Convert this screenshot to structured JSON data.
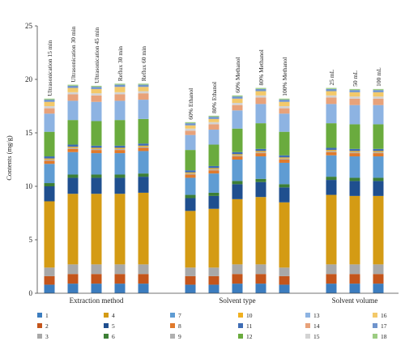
{
  "colors": [
    "#3c7dbf",
    "#c4551b",
    "#a8a8a8",
    "#d49b14",
    "#1f4f8f",
    "#3d7f36",
    "#5f9cd3",
    "#e07a2c",
    "#b0b0b0",
    "#f0b020",
    "#3f6db5",
    "#6aab3e",
    "#8db3e2",
    "#e8a27a",
    "#d3d3d3",
    "#f3c96a",
    "#6f94cc",
    "#9ccc82"
  ],
  "chart_data": {
    "type": "bar",
    "stacked": true,
    "ylabel": "Contents (mg/g)",
    "ylim": [
      0,
      25
    ],
    "yticks": [
      "0",
      "5",
      "10",
      "15",
      "20",
      "25"
    ],
    "groups": [
      {
        "name": "Extraction method",
        "bars": [
          "Ultrasonication 15 min",
          "Ultrasonication 30 min",
          "Ultrasonication 45 min",
          "Reflux 30 min",
          "Reflux 60 min"
        ]
      },
      {
        "name": "Solvent type",
        "bars": [
          "60% Ethanol",
          "80% Ethanol",
          "60% Methanol",
          "80% Methanol",
          "100% Methanol"
        ]
      },
      {
        "name": "Solvent volume",
        "bars": [
          "25 mL",
          "50 mL",
          "100 mL"
        ]
      }
    ],
    "categories": [
      "Ultrasonication 15 min",
      "Ultrasonication 30 min",
      "Ultrasonication 45 min",
      "Reflux 30 min",
      "Reflux 60 min",
      "60% Ethanol",
      "80% Ethanol",
      "60% Methanol",
      "80% Methanol",
      "100% Methanol",
      "25 mL",
      "50 mL",
      "100 mL"
    ],
    "series": [
      {
        "name": "1",
        "values": [
          0.8,
          0.9,
          0.9,
          0.9,
          0.9,
          0.8,
          0.8,
          0.9,
          0.9,
          0.8,
          0.9,
          0.9,
          0.9
        ]
      },
      {
        "name": "2",
        "values": [
          0.8,
          0.9,
          0.9,
          0.9,
          0.9,
          0.8,
          0.8,
          0.9,
          0.9,
          0.8,
          0.9,
          0.9,
          0.9
        ]
      },
      {
        "name": "3",
        "values": [
          0.8,
          0.9,
          0.9,
          0.9,
          0.9,
          0.8,
          0.8,
          0.9,
          0.9,
          0.8,
          0.9,
          0.9,
          0.9
        ]
      },
      {
        "name": "4",
        "values": [
          6.2,
          6.6,
          6.6,
          6.6,
          6.7,
          5.3,
          5.5,
          6.1,
          6.3,
          6.1,
          6.5,
          6.4,
          6.4
        ]
      },
      {
        "name": "5",
        "values": [
          1.4,
          1.5,
          1.5,
          1.5,
          1.5,
          1.2,
          1.2,
          1.4,
          1.4,
          1.4,
          1.4,
          1.4,
          1.4
        ]
      },
      {
        "name": "6",
        "values": [
          0.3,
          0.3,
          0.3,
          0.3,
          0.3,
          0.3,
          0.3,
          0.3,
          0.3,
          0.3,
          0.3,
          0.3,
          0.3
        ]
      },
      {
        "name": "7",
        "values": [
          1.8,
          2.1,
          2.0,
          2.0,
          2.1,
          1.6,
          1.8,
          2.0,
          2.1,
          2.0,
          2.0,
          2.0,
          2.0
        ]
      },
      {
        "name": "8",
        "values": [
          0.3,
          0.3,
          0.3,
          0.3,
          0.3,
          0.3,
          0.3,
          0.3,
          0.3,
          0.3,
          0.3,
          0.3,
          0.3
        ]
      },
      {
        "name": "9",
        "values": [
          0.1,
          0.1,
          0.1,
          0.1,
          0.1,
          0.1,
          0.1,
          0.1,
          0.1,
          0.1,
          0.1,
          0.1,
          0.1
        ]
      },
      {
        "name": "10",
        "values": [
          0.1,
          0.1,
          0.1,
          0.1,
          0.1,
          0.1,
          0.1,
          0.1,
          0.1,
          0.1,
          0.1,
          0.1,
          0.1
        ]
      },
      {
        "name": "11",
        "values": [
          0.2,
          0.2,
          0.2,
          0.2,
          0.2,
          0.2,
          0.2,
          0.2,
          0.2,
          0.2,
          0.2,
          0.2,
          0.2
        ]
      },
      {
        "name": "12",
        "values": [
          2.3,
          2.3,
          2.3,
          2.4,
          2.3,
          1.9,
          2.0,
          2.2,
          2.4,
          2.2,
          2.3,
          2.3,
          2.3
        ]
      },
      {
        "name": "13",
        "values": [
          1.7,
          1.8,
          1.8,
          1.8,
          1.8,
          1.4,
          1.4,
          1.7,
          1.8,
          1.7,
          1.8,
          1.8,
          1.8
        ]
      },
      {
        "name": "14",
        "values": [
          0.5,
          0.6,
          0.6,
          0.6,
          0.6,
          0.4,
          0.5,
          0.5,
          0.6,
          0.5,
          0.6,
          0.6,
          0.6
        ]
      },
      {
        "name": "15",
        "values": [
          0.2,
          0.2,
          0.2,
          0.2,
          0.2,
          0.2,
          0.2,
          0.2,
          0.2,
          0.2,
          0.2,
          0.2,
          0.2
        ]
      },
      {
        "name": "16",
        "values": [
          0.4,
          0.4,
          0.4,
          0.5,
          0.4,
          0.3,
          0.3,
          0.4,
          0.4,
          0.4,
          0.4,
          0.4,
          0.4
        ]
      },
      {
        "name": "17",
        "values": [
          0.2,
          0.2,
          0.2,
          0.2,
          0.2,
          0.2,
          0.2,
          0.2,
          0.2,
          0.2,
          0.2,
          0.2,
          0.2
        ]
      },
      {
        "name": "18",
        "values": [
          0.1,
          0.1,
          0.1,
          0.1,
          0.1,
          0.1,
          0.1,
          0.1,
          0.1,
          0.1,
          0.1,
          0.1,
          0.1
        ]
      }
    ],
    "legend_position": "bottom"
  }
}
